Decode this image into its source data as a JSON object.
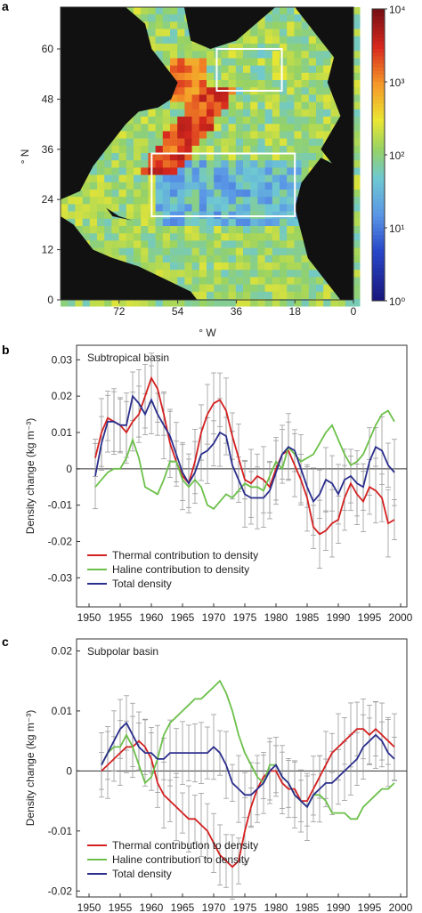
{
  "panels": {
    "a": "a",
    "b": "b",
    "c": "c"
  },
  "map": {
    "xlabel": "° W",
    "ylabel": "° N",
    "colorbar_labels": [
      "10⁰",
      "10¹",
      "10²",
      "10³",
      "10⁴"
    ]
  },
  "chart_data": [
    {
      "panel": "a",
      "type": "heatmap",
      "xlabel": "° W",
      "ylabel": "° N",
      "x_ticks": [
        "72",
        "54",
        "36",
        "18",
        "0"
      ],
      "y_ticks": [
        "0",
        "12",
        "24",
        "36",
        "48",
        "60"
      ],
      "xlim": [
        90,
        0
      ],
      "ylim": [
        0,
        70
      ],
      "colorbar": {
        "scale": "log",
        "range": [
          1,
          10000
        ],
        "tick_labels": [
          "10⁰",
          "10¹",
          "10²",
          "10³",
          "10⁴"
        ]
      },
      "boxes": [
        {
          "lon": [
            62,
            18
          ],
          "lat": [
            20,
            35
          ]
        },
        {
          "lon": [
            42,
            22
          ],
          "lat": [
            50,
            60
          ]
        }
      ]
    },
    {
      "panel": "b",
      "type": "line",
      "title": "Subtropical basin",
      "ylabel": "Density change (kg m⁻³)",
      "xlim": [
        1948,
        2001
      ],
      "ylim": [
        -0.038,
        0.034
      ],
      "x_ticks": [
        1950,
        1955,
        1960,
        1965,
        1970,
        1975,
        1980,
        1985,
        1990,
        1995,
        2000
      ],
      "y_ticks": [
        "0.03",
        "0.02",
        "0.01",
        "0",
        "-0.01",
        "-0.02",
        "-0.03"
      ],
      "y_tick_values": [
        0.03,
        0.02,
        0.01,
        0,
        -0.01,
        -0.02,
        -0.03
      ],
      "legend_position": "bottom-left",
      "x": [
        1951,
        1952,
        1953,
        1954,
        1955,
        1956,
        1957,
        1958,
        1959,
        1960,
        1961,
        1962,
        1963,
        1964,
        1965,
        1966,
        1967,
        1968,
        1969,
        1970,
        1971,
        1972,
        1973,
        1974,
        1975,
        1976,
        1977,
        1978,
        1979,
        1980,
        1981,
        1982,
        1983,
        1984,
        1985,
        1986,
        1987,
        1988,
        1989,
        1990,
        1991,
        1992,
        1993,
        1994,
        1995,
        1996,
        1997,
        1998,
        1999
      ],
      "series": [
        {
          "name": "Thermal contribution to density",
          "color": "#d42020",
          "values": [
            0.003,
            0.01,
            0.014,
            0.013,
            0.012,
            0.01,
            0.013,
            0.015,
            0.02,
            0.025,
            0.022,
            0.015,
            0.007,
            0.002,
            -0.002,
            -0.004,
            0.002,
            0.01,
            0.015,
            0.018,
            0.019,
            0.016,
            0.009,
            0.003,
            -0.003,
            -0.004,
            -0.002,
            -0.003,
            -0.005,
            0.0,
            0.004,
            0.005,
            0.001,
            -0.003,
            -0.008,
            -0.016,
            -0.018,
            -0.017,
            -0.015,
            -0.014,
            -0.008,
            -0.004,
            -0.007,
            -0.009,
            -0.005,
            -0.006,
            -0.008,
            -0.015,
            -0.014
          ]
        },
        {
          "name": "Haline contribution to density",
          "color": "#6cc04a",
          "values": [
            -0.005,
            -0.003,
            -0.001,
            0.0,
            0.0,
            0.003,
            0.008,
            0.003,
            -0.005,
            -0.006,
            -0.007,
            -0.003,
            0.002,
            0.002,
            -0.003,
            -0.005,
            -0.003,
            -0.005,
            -0.01,
            -0.011,
            -0.009,
            -0.007,
            -0.008,
            -0.006,
            -0.004,
            -0.005,
            -0.005,
            -0.006,
            -0.002,
            0.002,
            0.0,
            0.006,
            0.004,
            0.002,
            0.003,
            0.004,
            0.007,
            0.01,
            0.012,
            0.008,
            0.004,
            0.001,
            0.002,
            0.004,
            0.008,
            0.012,
            0.015,
            0.016,
            0.013
          ]
        },
        {
          "name": "Total density",
          "color": "#2a2e8c",
          "values": [
            -0.002,
            0.007,
            0.013,
            0.013,
            0.012,
            0.012,
            0.02,
            0.018,
            0.015,
            0.019,
            0.015,
            0.012,
            0.009,
            0.004,
            -0.001,
            -0.004,
            -0.001,
            0.004,
            0.005,
            0.007,
            0.01,
            0.009,
            0.001,
            -0.003,
            -0.007,
            -0.008,
            -0.008,
            -0.008,
            -0.006,
            -0.001,
            0.004,
            0.006,
            0.005,
            0.0,
            -0.005,
            -0.009,
            -0.007,
            -0.003,
            -0.004,
            -0.007,
            -0.003,
            -0.002,
            -0.004,
            -0.005,
            0.002,
            0.006,
            0.005,
            0.001,
            -0.001
          ]
        }
      ]
    },
    {
      "panel": "c",
      "type": "line",
      "title": "Subpolar basin",
      "ylabel": "Density change (kg m⁻³)",
      "xlim": [
        1948,
        2001
      ],
      "ylim": [
        -0.021,
        0.022
      ],
      "x_ticks": [
        1950,
        1955,
        1960,
        1965,
        1970,
        1975,
        1980,
        1985,
        1990,
        1995,
        2000
      ],
      "y_ticks": [
        "0.02",
        "0.01",
        "0",
        "-0.01",
        "-0.02"
      ],
      "y_tick_values": [
        0.02,
        0.01,
        0,
        -0.01,
        -0.02
      ],
      "legend_position": "bottom-left",
      "x": [
        1952,
        1953,
        1954,
        1955,
        1956,
        1957,
        1958,
        1959,
        1960,
        1961,
        1962,
        1963,
        1964,
        1965,
        1966,
        1967,
        1968,
        1969,
        1970,
        1971,
        1972,
        1973,
        1974,
        1975,
        1976,
        1977,
        1978,
        1979,
        1980,
        1981,
        1982,
        1983,
        1984,
        1985,
        1986,
        1987,
        1988,
        1989,
        1990,
        1991,
        1992,
        1993,
        1994,
        1995,
        1996,
        1997,
        1998,
        1999
      ],
      "series": [
        {
          "name": "Thermal contribution to density",
          "color": "#d42020",
          "values": [
            0.0,
            0.001,
            0.002,
            0.003,
            0.004,
            0.004,
            0.005,
            0.004,
            0.002,
            -0.002,
            -0.004,
            -0.005,
            -0.006,
            -0.007,
            -0.008,
            -0.008,
            -0.009,
            -0.01,
            -0.012,
            -0.014,
            -0.015,
            -0.016,
            -0.015,
            -0.01,
            -0.006,
            -0.003,
            -0.001,
            0.0,
            0.0,
            -0.002,
            -0.003,
            -0.003,
            -0.005,
            -0.005,
            -0.003,
            -0.001,
            0.001,
            0.003,
            0.004,
            0.005,
            0.006,
            0.007,
            0.007,
            0.006,
            0.007,
            0.006,
            0.005,
            0.004
          ]
        },
        {
          "name": "Haline contribution to density",
          "color": "#6cc04a",
          "values": [
            0.001,
            0.003,
            0.004,
            0.004,
            0.006,
            0.004,
            0.001,
            -0.002,
            -0.001,
            0.002,
            0.006,
            0.008,
            0.009,
            0.01,
            0.011,
            0.012,
            0.012,
            0.013,
            0.014,
            0.015,
            0.013,
            0.01,
            0.006,
            0.003,
            0.001,
            -0.001,
            -0.002,
            0.001,
            0.001,
            -0.001,
            -0.002,
            -0.004,
            -0.005,
            -0.006,
            -0.004,
            -0.004,
            -0.005,
            -0.007,
            -0.007,
            -0.007,
            -0.008,
            -0.008,
            -0.006,
            -0.005,
            -0.004,
            -0.003,
            -0.003,
            -0.002
          ]
        },
        {
          "name": "Total density",
          "color": "#2a2e8c",
          "values": [
            0.001,
            0.003,
            0.005,
            0.007,
            0.008,
            0.006,
            0.004,
            0.003,
            0.003,
            0.002,
            0.002,
            0.003,
            0.003,
            0.003,
            0.003,
            0.003,
            0.003,
            0.003,
            0.004,
            0.003,
            0.001,
            -0.002,
            -0.003,
            -0.004,
            -0.004,
            -0.003,
            -0.002,
            0.0,
            0.001,
            -0.001,
            -0.002,
            -0.004,
            -0.005,
            -0.006,
            -0.004,
            -0.003,
            -0.002,
            -0.002,
            -0.001,
            0.0,
            0.001,
            0.002,
            0.004,
            0.005,
            0.006,
            0.005,
            0.003,
            0.002
          ]
        }
      ]
    }
  ]
}
